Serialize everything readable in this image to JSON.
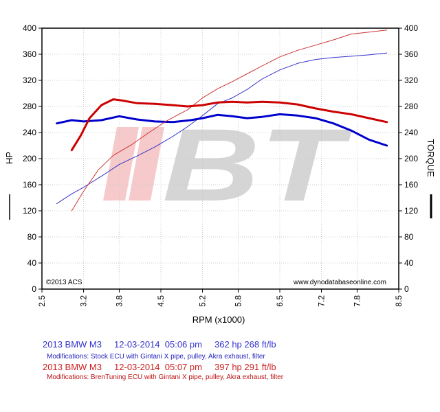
{
  "chart_data": {
    "type": "line",
    "xlabel": "RPM (x1000)",
    "ylabel_left": "HP",
    "ylabel_right": "TORQUE",
    "xlim": [
      2.5,
      8.5
    ],
    "ylim": [
      0,
      400
    ],
    "x_ticks": [
      "2.5",
      "3.2",
      "3.8",
      "4.5",
      "5.2",
      "5.8",
      "6.5",
      "7.2",
      "7.8",
      "8.5"
    ],
    "y_ticks": [
      "0",
      "40",
      "80",
      "120",
      "160",
      "200",
      "240",
      "280",
      "320",
      "360",
      "400"
    ],
    "grid": true,
    "legend_position": "below",
    "watermark": "BT",
    "copyright": "©2013 ACS",
    "website": "www.dynodatabaseonline.com",
    "series": [
      {
        "role": "hp",
        "color": "#3333cc",
        "stroke": "thin",
        "x": [
          2.75,
          3.0,
          3.2,
          3.5,
          3.8,
          4.1,
          4.4,
          4.7,
          4.95,
          5.2,
          5.45,
          5.7,
          5.95,
          6.2,
          6.5,
          6.8,
          7.1,
          7.4,
          7.7,
          8.0,
          8.3
        ],
        "values": [
          131,
          146,
          156,
          173,
          191,
          204,
          218,
          234,
          249,
          266,
          284,
          293,
          306,
          322,
          336,
          346,
          352,
          355,
          357,
          359,
          362
        ]
      },
      {
        "role": "torque",
        "color": "#0000cc",
        "stroke": "thick",
        "x": [
          2.75,
          3.0,
          3.2,
          3.5,
          3.8,
          4.1,
          4.4,
          4.7,
          5.0,
          5.2,
          5.45,
          5.7,
          5.95,
          6.2,
          6.5,
          6.8,
          7.1,
          7.4,
          7.7,
          8.0,
          8.3
        ],
        "values": [
          254,
          259,
          257,
          259,
          265,
          260,
          257,
          256,
          259,
          262,
          267,
          265,
          262,
          264,
          268,
          266,
          262,
          254,
          243,
          229,
          220
        ]
      },
      {
        "role": "hp",
        "color": "#cc3333",
        "stroke": "thin",
        "x": [
          3.0,
          3.2,
          3.45,
          3.7,
          4.0,
          4.3,
          4.6,
          4.95,
          5.2,
          5.45,
          5.7,
          5.95,
          6.2,
          6.5,
          6.8,
          7.1,
          7.4,
          7.7,
          8.0,
          8.3
        ],
        "values": [
          120,
          150,
          183,
          205,
          221,
          240,
          258,
          275,
          293,
          307,
          318,
          330,
          342,
          356,
          366,
          374,
          382,
          391,
          394,
          397
        ]
      },
      {
        "role": "torque",
        "color": "#cc0000",
        "stroke": "thick",
        "x": [
          3.0,
          3.15,
          3.3,
          3.5,
          3.7,
          3.85,
          4.1,
          4.4,
          4.7,
          4.95,
          5.2,
          5.45,
          5.7,
          5.95,
          6.2,
          6.5,
          6.8,
          7.1,
          7.4,
          7.7,
          8.0,
          8.3
        ],
        "values": [
          213,
          235,
          262,
          282,
          291,
          289,
          285,
          284,
          282,
          280,
          282,
          286,
          287,
          286,
          287,
          286,
          283,
          277,
          272,
          268,
          262,
          256
        ]
      }
    ]
  },
  "legend": {
    "runs": [
      {
        "color": "#3333cc",
        "title": "2013 BMW M3     12-03-2014  05:06 pm     362 hp 268 ft/lb",
        "mods": "Modifications: Stock ECU with Gintani X pipe, pulley, Akra exhaust, filter"
      },
      {
        "color": "#cc2222",
        "title": "2013 BMW M3     12-03-2014  05:07 pm     397 hp 291 ft/lb",
        "mods": "Modifications: BrenTuning ECU with Gintani X pipe, pulley, Akra exhaust, filter"
      }
    ]
  }
}
